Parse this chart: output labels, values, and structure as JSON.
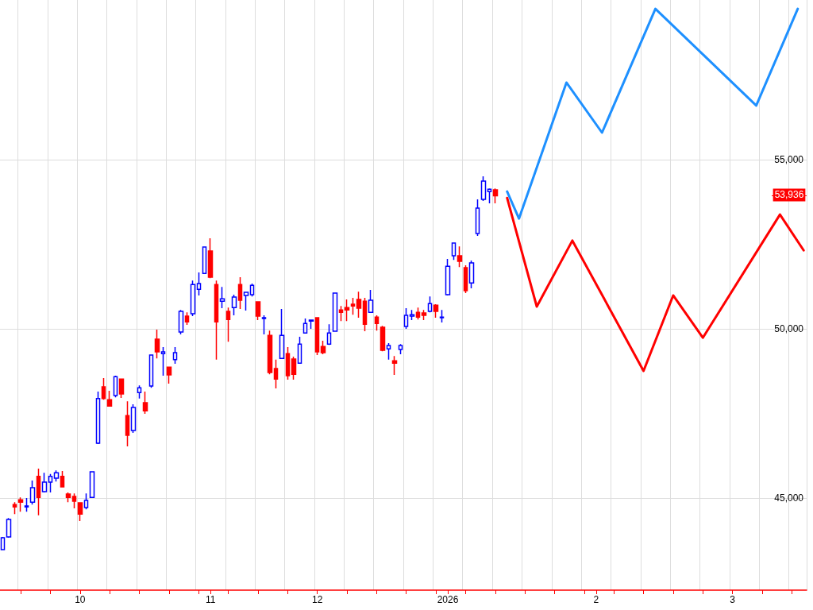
{
  "chart_data": {
    "type": "candlestick",
    "categories": [
      null,
      null,
      null,
      null,
      null,
      null,
      null,
      null,
      null,
      null,
      null,
      null,
      null,
      "10",
      null,
      null,
      null,
      null,
      null,
      null,
      null,
      null,
      null,
      null,
      null,
      null,
      null,
      null,
      null,
      null,
      null,
      null,
      null,
      null,
      null,
      "11",
      null,
      null,
      null,
      null,
      null,
      null,
      null,
      null,
      null,
      null,
      null,
      null,
      null,
      null,
      null,
      null,
      null,
      "12",
      null,
      null,
      null,
      null,
      null,
      null,
      null,
      null,
      null,
      null,
      null,
      null,
      null,
      null,
      null,
      null,
      null,
      null,
      null,
      null,
      null,
      "2026",
      null,
      null,
      null,
      null,
      null,
      null,
      null,
      null,
      null,
      null,
      null,
      null,
      null,
      null,
      null,
      null,
      null,
      null,
      null,
      null,
      null,
      null,
      null,
      null,
      "2",
      null,
      null,
      null,
      null,
      null,
      null,
      null,
      null,
      null,
      null,
      null,
      null,
      null,
      null,
      null,
      null,
      null,
      null,
      null,
      null,
      null,
      null,
      "3",
      null,
      null,
      null,
      null,
      null,
      null,
      null,
      null,
      null,
      null,
      null,
      null
    ],
    "ohlc": [
      [
        43480,
        43850,
        43480,
        43830
      ],
      [
        43850,
        44410,
        43830,
        44370
      ],
      [
        44810,
        44880,
        44530,
        44740
      ],
      [
        44950,
        45020,
        44600,
        44880
      ],
      [
        44740,
        45000,
        44600,
        44770
      ],
      [
        44880,
        45520,
        44810,
        45310
      ],
      [
        45640,
        45870,
        44490,
        45020
      ],
      [
        45190,
        45750,
        45170,
        45470
      ],
      [
        45470,
        45710,
        45170,
        45640
      ],
      [
        45590,
        45820,
        45490,
        45750
      ],
      [
        45640,
        45800,
        45330,
        45330
      ],
      [
        45120,
        45170,
        44880,
        45020
      ],
      [
        45050,
        45140,
        44700,
        44910
      ],
      [
        44860,
        44860,
        44320,
        44530
      ],
      [
        44720,
        45140,
        44670,
        44930
      ],
      [
        45020,
        45780,
        45020,
        45780
      ],
      [
        46620,
        48150,
        46600,
        47940
      ],
      [
        48290,
        48550,
        47910,
        47940
      ],
      [
        47910,
        48170,
        47720,
        47720
      ],
      [
        48030,
        48620,
        47980,
        48590
      ],
      [
        48520,
        48520,
        47960,
        48080
      ],
      [
        47440,
        47860,
        46530,
        46860
      ],
      [
        47000,
        47770,
        46930,
        47680
      ],
      [
        48120,
        48330,
        47940,
        48260
      ],
      [
        47820,
        48150,
        47490,
        47580
      ],
      [
        48310,
        49230,
        48260,
        49230
      ],
      [
        49700,
        49980,
        49130,
        49320
      ],
      [
        49270,
        49460,
        48620,
        49320
      ],
      [
        48870,
        48870,
        48380,
        48640
      ],
      [
        49090,
        49460,
        48970,
        49300
      ],
      [
        49910,
        50560,
        49840,
        50520
      ],
      [
        50380,
        50490,
        50120,
        50210
      ],
      [
        50450,
        51430,
        50380,
        51310
      ],
      [
        51170,
        51670,
        50990,
        51340
      ],
      [
        51640,
        52420,
        51640,
        52420
      ],
      [
        52300,
        52680,
        51500,
        51530
      ],
      [
        51310,
        51430,
        49090,
        50210
      ],
      [
        50820,
        51240,
        50610,
        50890
      ],
      [
        50520,
        50630,
        49620,
        50280
      ],
      [
        50630,
        51010,
        50400,
        50940
      ],
      [
        51310,
        51530,
        50590,
        50850
      ],
      [
        50990,
        51100,
        50540,
        51080
      ],
      [
        51010,
        51340,
        50960,
        51290
      ],
      [
        50800,
        50800,
        50260,
        50380
      ],
      [
        50310,
        50400,
        49840,
        50330
      ],
      [
        49810,
        49950,
        48660,
        48710
      ],
      [
        48830,
        49090,
        48240,
        48520
      ],
      [
        49130,
        50590,
        49110,
        49810
      ],
      [
        49270,
        49460,
        48500,
        48620
      ],
      [
        49110,
        49180,
        48500,
        48660
      ],
      [
        48990,
        49770,
        48970,
        49550
      ],
      [
        49880,
        50310,
        49860,
        50160
      ],
      [
        50230,
        50260,
        50000,
        50260
      ],
      [
        50330,
        50330,
        49230,
        49320
      ],
      [
        49480,
        49650,
        49250,
        49300
      ],
      [
        49550,
        50140,
        49530,
        49880
      ],
      [
        49930,
        51060,
        49930,
        51060
      ],
      [
        50560,
        50680,
        50230,
        50490
      ],
      [
        50630,
        50870,
        50230,
        50560
      ],
      [
        50730,
        50920,
        50420,
        50680
      ],
      [
        50870,
        51100,
        50330,
        50610
      ],
      [
        50820,
        50920,
        49930,
        50140
      ],
      [
        50490,
        51150,
        50470,
        50850
      ],
      [
        50350,
        50400,
        49950,
        50160
      ],
      [
        50050,
        50090,
        49340,
        49370
      ],
      [
        49410,
        49580,
        49090,
        49510
      ],
      [
        49060,
        49200,
        48640,
        48990
      ],
      [
        49390,
        49550,
        49250,
        49510
      ],
      [
        50070,
        50610,
        50000,
        50400
      ],
      [
        50380,
        50560,
        50260,
        50420
      ],
      [
        50490,
        50630,
        50280,
        50350
      ],
      [
        50470,
        50560,
        50260,
        50400
      ],
      [
        50520,
        50960,
        50490,
        50750
      ],
      [
        50700,
        50730,
        50330,
        50520
      ],
      [
        50330,
        50560,
        50190,
        50350
      ],
      [
        51010,
        52070,
        50990,
        51850
      ],
      [
        52160,
        52540,
        52040,
        52540
      ],
      [
        52160,
        52440,
        51830,
        52000
      ],
      [
        51810,
        51880,
        51060,
        51130
      ],
      [
        51360,
        52020,
        51200,
        51950
      ],
      [
        52820,
        53830,
        52750,
        53570
      ],
      [
        53830,
        54510,
        53780,
        54370
      ],
      [
        54060,
        54150,
        53710,
        54130
      ],
      [
        54110,
        54150,
        53710,
        53936
      ],
      null,
      null,
      null,
      null,
      null,
      null,
      null,
      null,
      null,
      null,
      null,
      null,
      null,
      null,
      null,
      null,
      null,
      null,
      null,
      null,
      null,
      null,
      null,
      null,
      null,
      null,
      null,
      null,
      null,
      null,
      null,
      null,
      null,
      null,
      null,
      null,
      null,
      null,
      null,
      null,
      null,
      null,
      null,
      null,
      null,
      null,
      null,
      null,
      null,
      null,
      null,
      null
    ],
    "colors": [
      "#0000ff",
      "#0000ff",
      "#ff0000",
      "#ff0000",
      "#0000ff",
      "#0000ff",
      "#ff0000",
      "#0000ff",
      "#0000ff",
      "#0000ff",
      "#ff0000",
      "#ff0000",
      "#ff0000",
      "#ff0000",
      "#0000ff",
      "#0000ff",
      "#0000ff",
      "#ff0000",
      "#ff0000",
      "#0000ff",
      "#ff0000",
      "#ff0000",
      "#0000ff",
      "#0000ff",
      "#ff0000",
      "#0000ff",
      "#ff0000",
      "#0000ff",
      "#ff0000",
      "#0000ff",
      "#0000ff",
      "#ff0000",
      "#0000ff",
      "#0000ff",
      "#0000ff",
      "#ff0000",
      "#ff0000",
      "#0000ff",
      "#ff0000",
      "#0000ff",
      "#ff0000",
      "#0000ff",
      "#0000ff",
      "#ff0000",
      "#0000ff",
      "#ff0000",
      "#ff0000",
      "#0000ff",
      "#ff0000",
      "#ff0000",
      "#0000ff",
      "#0000ff",
      "#0000ff",
      "#ff0000",
      "#ff0000",
      "#0000ff",
      "#0000ff",
      "#ff0000",
      "#ff0000",
      "#ff0000",
      "#ff0000",
      "#ff0000",
      "#0000ff",
      "#ff0000",
      "#ff0000",
      "#0000ff",
      "#ff0000",
      "#0000ff",
      "#0000ff",
      "#0000ff",
      "#ff0000",
      "#ff0000",
      "#0000ff",
      "#ff0000",
      "#0000ff",
      "#0000ff",
      "#0000ff",
      "#ff0000",
      "#ff0000",
      "#0000ff",
      "#0000ff",
      "#0000ff",
      "#0000ff",
      "#ff0000",
      null,
      null,
      null,
      null,
      null,
      null,
      null,
      null,
      null,
      null,
      null,
      null,
      null,
      null,
      null,
      null,
      null,
      null,
      null,
      null,
      null,
      null,
      null,
      null,
      null,
      null,
      null,
      null,
      null,
      null,
      null,
      null,
      null,
      null,
      null,
      null,
      null,
      null,
      null,
      null,
      null,
      null,
      null,
      null,
      null,
      null,
      null,
      null,
      null,
      null,
      null,
      null
    ],
    "series": [
      {
        "type": "line",
        "color": "#1e90ff",
        "values": [
          null,
          null,
          null,
          null,
          null,
          null,
          null,
          null,
          null,
          null,
          null,
          null,
          null,
          null,
          null,
          null,
          null,
          null,
          null,
          null,
          null,
          null,
          null,
          null,
          null,
          null,
          null,
          null,
          null,
          null,
          null,
          null,
          null,
          null,
          null,
          null,
          null,
          null,
          null,
          null,
          null,
          null,
          null,
          null,
          null,
          null,
          null,
          null,
          null,
          null,
          null,
          null,
          null,
          null,
          null,
          null,
          null,
          null,
          null,
          null,
          null,
          null,
          null,
          null,
          null,
          null,
          null,
          null,
          null,
          null,
          null,
          null,
          null,
          null,
          null,
          null,
          null,
          null,
          null,
          null,
          null,
          null,
          null,
          null,
          null,
          54060,
          null,
          53260,
          null,
          null,
          null,
          null,
          null,
          null,
          null,
          57280,
          null,
          null,
          null,
          null,
          null,
          55800,
          null,
          null,
          null,
          null,
          null,
          null,
          null,
          null,
          59460,
          null,
          null,
          null,
          null,
          null,
          null,
          null,
          null,
          null,
          null,
          null,
          null,
          null,
          null,
          null,
          null,
          56600,
          null,
          null,
          null,
          null,
          null,
          null,
          59460,
          null
        ]
      },
      {
        "type": "line",
        "color": "#ff0000",
        "values": [
          null,
          null,
          null,
          null,
          null,
          null,
          null,
          null,
          null,
          null,
          null,
          null,
          null,
          null,
          null,
          null,
          null,
          null,
          null,
          null,
          null,
          null,
          null,
          null,
          null,
          null,
          null,
          null,
          null,
          null,
          null,
          null,
          null,
          null,
          null,
          null,
          null,
          null,
          null,
          null,
          null,
          null,
          null,
          null,
          null,
          null,
          null,
          null,
          null,
          null,
          null,
          null,
          null,
          null,
          null,
          null,
          null,
          null,
          null,
          null,
          null,
          null,
          null,
          null,
          null,
          null,
          null,
          null,
          null,
          null,
          null,
          null,
          null,
          null,
          null,
          null,
          null,
          null,
          null,
          null,
          null,
          null,
          null,
          null,
          null,
          53870,
          null,
          null,
          null,
          null,
          50660,
          null,
          null,
          null,
          null,
          null,
          52610,
          null,
          null,
          null,
          null,
          null,
          null,
          null,
          null,
          null,
          null,
          null,
          48760,
          null,
          null,
          null,
          null,
          50990,
          null,
          null,
          null,
          null,
          49740,
          null,
          null,
          null,
          null,
          null,
          null,
          null,
          null,
          null,
          null,
          null,
          null,
          53380,
          null,
          null,
          null,
          52320
        ]
      }
    ],
    "ylim": [
      42280,
      59720
    ],
    "yticks": [
      {
        "value": 45000,
        "label": "45,000"
      },
      {
        "value": 50000,
        "label": "50,000"
      },
      {
        "value": 55000,
        "label": "55,000"
      }
    ],
    "grid": true,
    "ref_lines": [
      {
        "axis": "y",
        "value": 53936,
        "label": "53,936",
        "color": "#ff0000"
      }
    ]
  }
}
